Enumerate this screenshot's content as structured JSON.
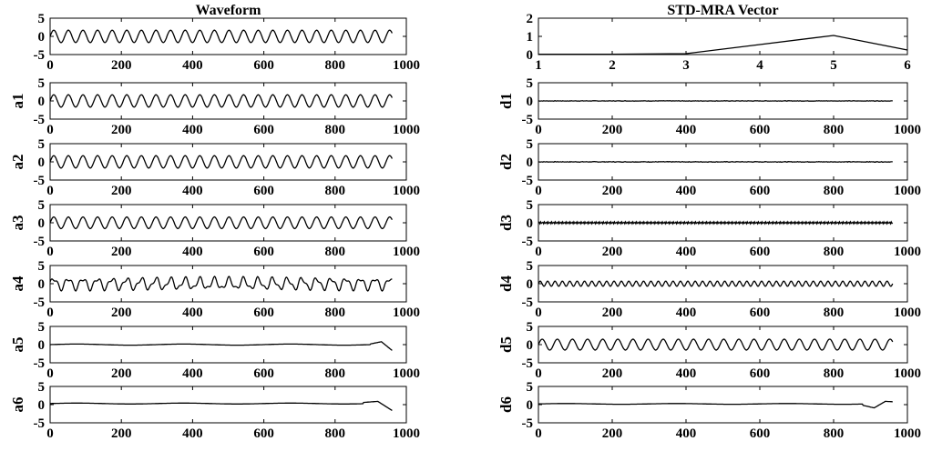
{
  "chart_data": [
    {
      "id": "waveform",
      "type": "line",
      "title": "Waveform",
      "ylabel": "",
      "xlim": [
        0,
        1000
      ],
      "ylim": [
        -5,
        5
      ],
      "xticks": [
        0,
        200,
        400,
        600,
        800,
        1000
      ],
      "yticks": [
        -5,
        0,
        5
      ],
      "signal": {
        "kind": "sine",
        "amplitude": 1.7,
        "period": 41,
        "n": 960,
        "offset": 0
      }
    },
    {
      "id": "std-mra",
      "type": "line",
      "title": "STD-MRA Vector",
      "ylabel": "",
      "xlim": [
        1,
        6
      ],
      "ylim": [
        0,
        2
      ],
      "xticks": [
        1,
        2,
        3,
        4,
        5,
        6
      ],
      "yticks": [
        0,
        1,
        2
      ],
      "x": [
        1,
        2,
        3,
        4,
        5,
        6
      ],
      "y": [
        0.02,
        0.02,
        0.05,
        0.55,
        1.05,
        0.25
      ]
    },
    {
      "id": "a1",
      "type": "line",
      "ylabel": "a1",
      "xlim": [
        0,
        1000
      ],
      "ylim": [
        -5,
        5
      ],
      "xticks": [
        0,
        200,
        400,
        600,
        800,
        1000
      ],
      "yticks": [
        -5,
        0,
        5
      ],
      "signal": {
        "kind": "sine",
        "amplitude": 1.7,
        "period": 41,
        "n": 960,
        "offset": 0
      }
    },
    {
      "id": "d1",
      "type": "line",
      "ylabel": "d1",
      "xlim": [
        0,
        1000
      ],
      "ylim": [
        -5,
        5
      ],
      "xticks": [
        0,
        200,
        400,
        600,
        800,
        1000
      ],
      "yticks": [
        -5,
        0,
        5
      ],
      "signal": {
        "kind": "noise",
        "amplitude": 0.06,
        "n": 960,
        "offset": 0
      }
    },
    {
      "id": "a2",
      "type": "line",
      "ylabel": "a2",
      "xlim": [
        0,
        1000
      ],
      "ylim": [
        -5,
        5
      ],
      "xticks": [
        0,
        200,
        400,
        600,
        800,
        1000
      ],
      "yticks": [
        -5,
        0,
        5
      ],
      "signal": {
        "kind": "sine",
        "amplitude": 1.7,
        "period": 41,
        "n": 960,
        "offset": 0
      }
    },
    {
      "id": "d2",
      "type": "line",
      "ylabel": "d2",
      "xlim": [
        0,
        1000
      ],
      "ylim": [
        -5,
        5
      ],
      "xticks": [
        0,
        200,
        400,
        600,
        800,
        1000
      ],
      "yticks": [
        -5,
        0,
        5
      ],
      "signal": {
        "kind": "noise",
        "amplitude": 0.08,
        "n": 960,
        "offset": 0
      }
    },
    {
      "id": "a3",
      "type": "line",
      "ylabel": "a3",
      "xlim": [
        0,
        1000
      ],
      "ylim": [
        -5,
        5
      ],
      "xticks": [
        0,
        200,
        400,
        600,
        800,
        1000
      ],
      "yticks": [
        -5,
        0,
        5
      ],
      "signal": {
        "kind": "sine",
        "amplitude": 1.6,
        "period": 41,
        "n": 960,
        "offset": 0
      }
    },
    {
      "id": "d3",
      "type": "line",
      "ylabel": "d3",
      "xlim": [
        0,
        1000
      ],
      "ylim": [
        -5,
        5
      ],
      "xticks": [
        0,
        200,
        400,
        600,
        800,
        1000
      ],
      "yticks": [
        -5,
        0,
        5
      ],
      "signal": {
        "kind": "sine",
        "amplitude": 0.25,
        "period": 5,
        "n": 960,
        "offset": 0
      }
    },
    {
      "id": "a4",
      "type": "line",
      "ylabel": "a4",
      "xlim": [
        0,
        1000
      ],
      "ylim": [
        -5,
        5
      ],
      "xticks": [
        0,
        200,
        400,
        600,
        800,
        1000
      ],
      "yticks": [
        -5,
        0,
        5
      ],
      "signal": {
        "kind": "mix",
        "amplitude": 1.4,
        "period": 41,
        "amplitude2": 0.6,
        "period2": 20,
        "n": 960,
        "offset": 0
      }
    },
    {
      "id": "d4",
      "type": "line",
      "ylabel": "d4",
      "xlim": [
        0,
        1000
      ],
      "ylim": [
        -5,
        5
      ],
      "xticks": [
        0,
        200,
        400,
        600,
        800,
        1000
      ],
      "yticks": [
        -5,
        0,
        5
      ],
      "signal": {
        "kind": "sine",
        "amplitude": 0.7,
        "period": 20,
        "n": 960,
        "offset": 0
      }
    },
    {
      "id": "a5",
      "type": "line",
      "ylabel": "a5",
      "xlim": [
        0,
        1000
      ],
      "ylim": [
        -5,
        5
      ],
      "xticks": [
        0,
        200,
        400,
        600,
        800,
        1000
      ],
      "yticks": [
        -5,
        0,
        5
      ],
      "signal": {
        "kind": "flat-end",
        "amplitude": 0.15,
        "n": 960,
        "offset": 0,
        "tail": [
          [
            900,
            0.2
          ],
          [
            930,
            0.8
          ],
          [
            960,
            -1.6
          ]
        ]
      }
    },
    {
      "id": "d5",
      "type": "line",
      "ylabel": "d5",
      "xlim": [
        0,
        1000
      ],
      "ylim": [
        -5,
        5
      ],
      "xticks": [
        0,
        200,
        400,
        600,
        800,
        1000
      ],
      "yticks": [
        -5,
        0,
        5
      ],
      "signal": {
        "kind": "sine",
        "amplitude": 1.5,
        "period": 41,
        "n": 960,
        "offset": 0
      }
    },
    {
      "id": "a6",
      "type": "line",
      "ylabel": "a6",
      "xlim": [
        0,
        1000
      ],
      "ylim": [
        -5,
        5
      ],
      "xticks": [
        0,
        200,
        400,
        600,
        800,
        1000
      ],
      "yticks": [
        -5,
        0,
        5
      ],
      "signal": {
        "kind": "flat-end",
        "amplitude": 0.12,
        "n": 960,
        "offset": 0.3,
        "tail": [
          [
            880,
            0.6
          ],
          [
            920,
            0.9
          ],
          [
            960,
            -1.6
          ]
        ]
      }
    },
    {
      "id": "d6",
      "type": "line",
      "ylabel": "d6",
      "xlim": [
        0,
        1000
      ],
      "ylim": [
        -5,
        5
      ],
      "xticks": [
        0,
        200,
        400,
        600,
        800,
        1000
      ],
      "yticks": [
        -5,
        0,
        5
      ],
      "signal": {
        "kind": "flat-end",
        "amplitude": 0.1,
        "n": 960,
        "offset": 0.2,
        "tail": [
          [
            880,
            -0.2
          ],
          [
            910,
            -0.9
          ],
          [
            940,
            0.9
          ],
          [
            960,
            0.8
          ]
        ]
      }
    }
  ]
}
